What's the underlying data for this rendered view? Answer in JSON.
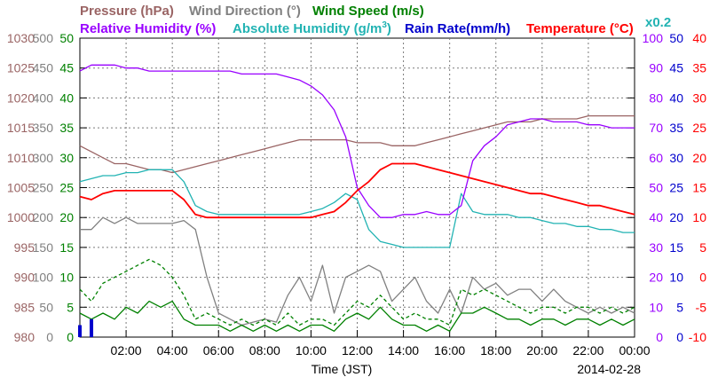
{
  "chart_data": {
    "type": "line",
    "date": "2014-02-28",
    "xlabel": "Time (JST)",
    "grid": true,
    "x_ticks": [
      "02:00",
      "04:00",
      "06:00",
      "08:00",
      "10:00",
      "12:00",
      "14:00",
      "16:00",
      "18:00",
      "20:00",
      "22:00",
      "00:00"
    ],
    "x_hours": [
      0,
      0.5,
      1,
      1.5,
      2,
      2.5,
      3,
      3.5,
      4,
      4.5,
      5,
      5.5,
      6,
      6.5,
      7,
      7.5,
      8,
      8.5,
      9,
      9.5,
      10,
      10.5,
      11,
      11.5,
      12,
      12.5,
      13,
      13.5,
      14,
      14.5,
      15,
      15.5,
      16,
      16.5,
      17,
      17.5,
      18,
      18.5,
      19,
      19.5,
      20,
      20.5,
      21,
      21.5,
      22,
      22.5,
      23,
      23.5,
      24
    ],
    "axes_left": [
      {
        "name": "Pressure (hPa)",
        "color": "#9a6464",
        "ticks": [
          "980",
          "985",
          "990",
          "995",
          "1000",
          "1005",
          "1010",
          "1015",
          "1020",
          "1025",
          "1030"
        ],
        "range": [
          980,
          1030
        ]
      },
      {
        "name": "Wind Direction (°)",
        "color": "#808080",
        "ticks": [
          "0",
          "50",
          "100",
          "150",
          "200",
          "250",
          "300",
          "350",
          "400",
          "450",
          "500"
        ],
        "range": [
          0,
          500
        ]
      },
      {
        "name": "Wind Speed (m/s)",
        "color": "#008000",
        "ticks": [
          "0",
          "5",
          "10",
          "15",
          "20",
          "25",
          "30",
          "35",
          "40",
          "45",
          "50"
        ],
        "range": [
          0,
          50
        ]
      }
    ],
    "axes_right": [
      {
        "name": "Relative Humidity (%)",
        "color": "#9900ff",
        "ticks": [
          "0",
          "10",
          "20",
          "30",
          "40",
          "50",
          "60",
          "70",
          "80",
          "90",
          "100"
        ],
        "range": [
          0,
          100
        ]
      },
      {
        "name": "Rain Rate(mm/h)",
        "color": "#0000cc",
        "ticks": [
          "0",
          "5",
          "10",
          "15",
          "20",
          "25",
          "30",
          "35",
          "40",
          "45",
          "50"
        ],
        "range": [
          0,
          50
        ]
      },
      {
        "name": "Temperature (°C)",
        "color": "#ff0000",
        "ticks": [
          "-10",
          "-5",
          "0",
          "5",
          "10",
          "15",
          "20",
          "25",
          "30",
          "35",
          "40"
        ],
        "range": [
          -10,
          40
        ]
      }
    ],
    "absolute_humidity_label": "Absolute Humidity (g/m",
    "absolute_humidity_unit_sup": "3",
    "absolute_humidity_unit_end": ")",
    "absolute_humidity_scale": "x0.2",
    "absolute_humidity_color": "#22b3b3",
    "series": [
      {
        "name": "Pressure (hPa)",
        "color": "#9a6464",
        "axis": "pressure",
        "values": [
          1012,
          1011,
          1010,
          1009,
          1009,
          1008.5,
          1008,
          1008,
          1007.5,
          1008,
          1008.5,
          1009,
          1009.5,
          1010,
          1010.5,
          1011,
          1011.5,
          1012,
          1012.5,
          1013,
          1013,
          1013,
          1013,
          1013,
          1012.5,
          1012.5,
          1012.5,
          1012,
          1012,
          1012,
          1012.5,
          1013,
          1013.5,
          1014,
          1014.5,
          1015,
          1015.5,
          1016,
          1016,
          1016,
          1016.5,
          1016.5,
          1016.5,
          1016.5,
          1017,
          1017,
          1017,
          1017,
          1017
        ]
      },
      {
        "name": "Relative Humidity (%)",
        "color": "#9900ff",
        "axis": "rh",
        "values": [
          89,
          91,
          91,
          91,
          90,
          90,
          89,
          89,
          89,
          89,
          89,
          89,
          89,
          89,
          88,
          88,
          88,
          88,
          87,
          86,
          84,
          81,
          76,
          67,
          50,
          44,
          40,
          40,
          41,
          41,
          42,
          41,
          41,
          44,
          59,
          64,
          67,
          71,
          72,
          73,
          73,
          72,
          72,
          72,
          71,
          71,
          70,
          70,
          70
        ]
      },
      {
        "name": "Absolute Humidity",
        "color": "#22b3b3",
        "axis": "ah",
        "values": [
          26,
          26.5,
          27,
          27,
          27.5,
          27.5,
          28,
          28,
          28,
          26,
          22,
          21,
          20.5,
          20.5,
          20.5,
          20.5,
          20.5,
          20.5,
          20.5,
          20.5,
          21,
          21.5,
          22.5,
          24,
          23,
          18,
          16,
          15.5,
          15,
          15,
          15,
          15,
          15,
          24,
          21,
          20.5,
          20.5,
          20.5,
          20,
          20,
          19.5,
          19,
          19,
          18.5,
          18.5,
          18,
          18,
          17.5,
          17.5
        ]
      },
      {
        "name": "Temperature (°C)",
        "color": "#ff0000",
        "axis": "temp",
        "values": [
          13.5,
          13,
          14,
          14.5,
          14.5,
          14.5,
          14.5,
          14.5,
          14.5,
          13,
          10.5,
          10,
          10,
          10,
          10,
          10,
          10,
          10,
          10,
          10,
          10,
          10.5,
          11,
          12.5,
          14.5,
          16,
          18,
          19,
          19,
          19,
          18.5,
          18,
          17.5,
          17,
          16.5,
          16,
          15.5,
          15,
          14.5,
          14,
          14,
          13.5,
          13,
          12.5,
          12,
          12,
          11.5,
          11,
          10.5
        ]
      },
      {
        "name": "Wind Direction (°)",
        "color": "#808080",
        "axis": "wdir",
        "values": [
          180,
          180,
          200,
          190,
          200,
          190,
          190,
          190,
          190,
          195,
          180,
          100,
          40,
          30,
          20,
          25,
          30,
          25,
          70,
          100,
          60,
          120,
          40,
          100,
          110,
          120,
          110,
          60,
          80,
          100,
          60,
          40,
          80,
          40,
          100,
          80,
          90,
          70,
          80,
          80,
          60,
          80,
          60,
          50,
          40,
          50,
          40,
          50,
          40
        ]
      },
      {
        "name": "Wind Speed (m/s)",
        "color": "#008000",
        "axis": "ws",
        "values": [
          4,
          3,
          4,
          3,
          5,
          4,
          6,
          5,
          6,
          3,
          2,
          2,
          2,
          1,
          2,
          1,
          2,
          1,
          2,
          1,
          2,
          2,
          1,
          3,
          4,
          3,
          5,
          3,
          2,
          2,
          1,
          2,
          1,
          4,
          4,
          5,
          4,
          3,
          3,
          2,
          3,
          3,
          2,
          3,
          3,
          2,
          3,
          2,
          3
        ]
      },
      {
        "name": "Wind Speed max (m/s)",
        "color": "#008000",
        "axis": "ws",
        "values": [
          8,
          6,
          9,
          10,
          11,
          12,
          13,
          12,
          10,
          7,
          3,
          4,
          3,
          2,
          3,
          2,
          3,
          2,
          4,
          2,
          3,
          3,
          2,
          4,
          6,
          5,
          7,
          5,
          3,
          4,
          3,
          3,
          2,
          8,
          7,
          8,
          7,
          6,
          5,
          4,
          5,
          5,
          4,
          5,
          5,
          4,
          5,
          4,
          5
        ]
      },
      {
        "name": "Rain Rate(mm/h)",
        "color": "#0000cc",
        "axis": "rain",
        "values": [
          2,
          3,
          0,
          0,
          0,
          0,
          0,
          0,
          0,
          0,
          0,
          0,
          0,
          0,
          0,
          0,
          0,
          0,
          0,
          0,
          0,
          0,
          0,
          0,
          0,
          0,
          0,
          0,
          0,
          0,
          0,
          0,
          0,
          0,
          0,
          0,
          0,
          0,
          0,
          0,
          0,
          0,
          0,
          0,
          0,
          0,
          0,
          0,
          0
        ]
      }
    ]
  }
}
